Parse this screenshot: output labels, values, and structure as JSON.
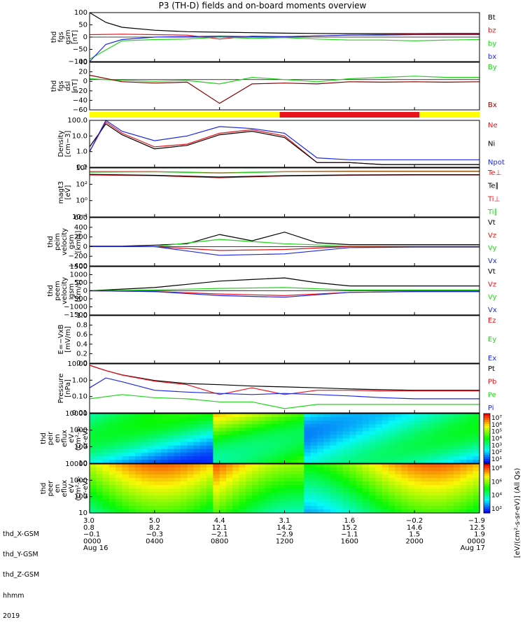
{
  "title": "P3 (TH-D) fields and on-board moments overview",
  "chart_data": [
    {
      "type": "line",
      "ylabel": [
        "thd",
        "fgs",
        "gsm",
        "[nT]"
      ],
      "ylim": [
        -100,
        100
      ],
      "ticks": [
        "100",
        "50",
        "0",
        "−50",
        "−100"
      ],
      "series": [
        {
          "name": "Bt",
          "color": "#000000",
          "x": [
            0,
            1,
            2,
            4,
            6,
            8,
            10,
            12,
            14,
            16,
            18,
            20,
            22,
            24
          ],
          "values": [
            100,
            60,
            40,
            28,
            22,
            20,
            18,
            16,
            15,
            14,
            14,
            14,
            15,
            15
          ]
        },
        {
          "name": "bz",
          "color": "#e8141b",
          "x": [
            0,
            2,
            4,
            6,
            8,
            10,
            12,
            14,
            16,
            18,
            20,
            22,
            24
          ],
          "values": [
            10,
            12,
            10,
            8,
            -8,
            4,
            2,
            5,
            8,
            10,
            12,
            12,
            12
          ]
        },
        {
          "name": "by",
          "color": "#22d51b",
          "x": [
            0,
            2,
            4,
            6,
            8,
            10,
            12,
            14,
            16,
            18,
            20,
            22,
            24
          ],
          "values": [
            -90,
            -15,
            -10,
            -8,
            0,
            -5,
            -2,
            -8,
            -12,
            -12,
            -15,
            -12,
            -10
          ]
        },
        {
          "name": "bx",
          "color": "#1d28e6",
          "x": [
            0,
            1,
            2,
            4,
            6,
            8,
            10,
            12,
            14,
            16,
            18,
            20,
            22,
            24
          ],
          "values": [
            -100,
            -30,
            -10,
            0,
            2,
            4,
            2,
            2,
            5,
            8,
            8,
            10,
            10,
            10
          ]
        }
      ]
    },
    {
      "type": "line",
      "ylabel": [
        "thd",
        "fgs",
        "dsl",
        "[nT]"
      ],
      "ylim": [
        -70,
        40
      ],
      "ticks": [
        "40",
        "20",
        "0",
        "−20",
        "−40",
        "−60"
      ],
      "series": [
        {
          "name": "By",
          "color": "#22d51b",
          "x": [
            0,
            2,
            4,
            6,
            8,
            10,
            12,
            14,
            16,
            18,
            20,
            22,
            24
          ],
          "values": [
            2,
            -2,
            -4,
            -2,
            -10,
            5,
            0,
            -5,
            2,
            5,
            8,
            5,
            5
          ]
        },
        {
          "name": "Bx",
          "color": "#8b0000",
          "x": [
            0,
            2,
            4,
            6,
            8,
            10,
            12,
            14,
            16,
            18,
            20,
            22,
            24
          ],
          "values": [
            10,
            -5,
            -8,
            -6,
            -55,
            -10,
            -8,
            -10,
            -5,
            -6,
            -5,
            -6,
            -5
          ]
        }
      ]
    },
    {
      "type": "line",
      "scale": "log",
      "ylabel": [
        "Density",
        "[cm−3]"
      ],
      "ylim": [
        0.1,
        100
      ],
      "ticks": [
        "100.0",
        "10.0",
        "1.0",
        "0.1"
      ],
      "series": [
        {
          "name": "Ne",
          "color": "#e8141b",
          "x": [
            0,
            1,
            2,
            4,
            6,
            8,
            10,
            12,
            14,
            16,
            18,
            20,
            22,
            24
          ],
          "values": [
            1,
            80,
            15,
            2,
            3,
            15,
            25,
            10,
            0.2,
            0.2,
            0.15,
            0.15,
            0.15,
            0.15
          ]
        },
        {
          "name": "Ni",
          "color": "#000000",
          "x": [
            0,
            1,
            2,
            4,
            6,
            8,
            10,
            12,
            14,
            16,
            18,
            20,
            22,
            24
          ],
          "values": [
            2,
            60,
            12,
            1.5,
            2.5,
            12,
            20,
            8,
            0.2,
            0.2,
            0.15,
            0.15,
            0.15,
            0.15
          ]
        },
        {
          "name": "Npot",
          "color": "#1d28e6",
          "x": [
            0,
            1,
            2,
            4,
            6,
            8,
            10,
            12,
            14,
            16,
            18,
            20,
            22,
            24
          ],
          "values": [
            1,
            100,
            20,
            5,
            10,
            40,
            30,
            15,
            0.4,
            0.3,
            0.3,
            0.3,
            0.3,
            0.3
          ]
        }
      ]
    },
    {
      "type": "line",
      "scale": "log",
      "ylabel": [
        "magt3",
        "[eV]"
      ],
      "ylim": [
        0.001,
        10000
      ],
      "ticks": [
        "10⁴",
        "10²",
        "10⁰",
        "10⁻²"
      ],
      "series": [
        {
          "name": "Te⊥",
          "color": "#e8141b",
          "x": [
            0,
            4,
            8,
            12,
            16,
            20,
            24
          ],
          "values": [
            1000,
            800,
            400,
            700,
            900,
            1000,
            1000
          ]
        },
        {
          "name": "Te∥",
          "color": "#000000",
          "x": [
            0,
            4,
            8,
            12,
            16,
            20,
            24
          ],
          "values": [
            1200,
            900,
            500,
            800,
            1000,
            1100,
            1100
          ]
        },
        {
          "name": "Ti⊥",
          "color": "#e8141b",
          "x": [
            0,
            4,
            8,
            12,
            16,
            20,
            24
          ],
          "values": [
            3000,
            3000,
            2000,
            3000,
            3500,
            3500,
            3500
          ]
        },
        {
          "name": "Ti∥",
          "color": "#22d51b",
          "x": [
            0,
            4,
            8,
            12,
            16,
            20,
            24
          ],
          "values": [
            2500,
            2800,
            1800,
            2800,
            3000,
            3000,
            3000
          ]
        }
      ]
    },
    {
      "type": "line",
      "ylabel": [
        "thd",
        "peim",
        "velocity",
        "gsm",
        "[km/s]"
      ],
      "ylim": [
        -400,
        600
      ],
      "ticks": [
        "600",
        "400",
        "200",
        "0",
        "−200",
        "−400"
      ],
      "series": [
        {
          "name": "Vt",
          "color": "#000000",
          "x": [
            0,
            2,
            4,
            6,
            8,
            10,
            12,
            14,
            16,
            18,
            20,
            22,
            24
          ],
          "values": [
            10,
            10,
            30,
            60,
            250,
            120,
            300,
            80,
            40,
            40,
            40,
            40,
            40
          ]
        },
        {
          "name": "Vz",
          "color": "#e8141b",
          "x": [
            0,
            4,
            8,
            12,
            16,
            20,
            24
          ],
          "values": [
            0,
            0,
            -80,
            -60,
            0,
            0,
            0
          ]
        },
        {
          "name": "Vy",
          "color": "#22d51b",
          "x": [
            0,
            4,
            8,
            12,
            16,
            20,
            24
          ],
          "values": [
            0,
            0,
            150,
            60,
            10,
            10,
            10
          ]
        },
        {
          "name": "Vx",
          "color": "#1d28e6",
          "x": [
            0,
            4,
            8,
            12,
            16,
            20,
            24
          ],
          "values": [
            0,
            0,
            -180,
            -150,
            -20,
            -10,
            -10
          ]
        }
      ]
    },
    {
      "type": "line",
      "ylabel": [
        "thd",
        "peem",
        "velocity",
        "gsm",
        "[km/s]"
      ],
      "ylim": [
        -1500,
        1500
      ],
      "ticks": [
        "1500",
        "1000",
        "500",
        "0",
        "−500",
        "−1000",
        "−1500"
      ],
      "series": [
        {
          "name": "Vt",
          "color": "#000000",
          "x": [
            0,
            4,
            6,
            8,
            10,
            12,
            14,
            16,
            18,
            20,
            22,
            24
          ],
          "values": [
            0,
            200,
            400,
            600,
            700,
            800,
            500,
            300,
            300,
            300,
            300,
            300
          ]
        },
        {
          "name": "Vz",
          "color": "#e8141b",
          "x": [
            0,
            4,
            8,
            12,
            16,
            20,
            24
          ],
          "values": [
            0,
            -50,
            -200,
            -300,
            -100,
            -50,
            -50
          ]
        },
        {
          "name": "Vy",
          "color": "#22d51b",
          "x": [
            0,
            4,
            8,
            12,
            16,
            20,
            24
          ],
          "values": [
            0,
            50,
            150,
            200,
            50,
            50,
            50
          ]
        },
        {
          "name": "Vx",
          "color": "#1d28e6",
          "x": [
            0,
            4,
            8,
            12,
            16,
            20,
            24
          ],
          "values": [
            0,
            -50,
            -300,
            -400,
            -100,
            -50,
            -50
          ]
        }
      ]
    },
    {
      "type": "line",
      "ylabel": [
        "E=−VxB",
        "[mV/m]"
      ],
      "ylim": [
        0,
        1
      ],
      "ticks": [
        "1.0",
        "0.8",
        "0.6",
        "0.4",
        "0.2",
        "0.0"
      ],
      "series": [
        {
          "name": "Ez",
          "color": "#e8141b",
          "x": [],
          "values": []
        },
        {
          "name": "Ey",
          "color": "#22d51b",
          "x": [],
          "values": []
        },
        {
          "name": "Ex",
          "color": "#1d28e6",
          "x": [],
          "values": []
        }
      ]
    },
    {
      "type": "line",
      "scale": "log",
      "ylabel": [
        "Pressure",
        "[nPa]"
      ],
      "ylim": [
        0.005,
        15
      ],
      "ticks": [
        "10.00",
        "1.00",
        "0.10",
        "0.01"
      ],
      "series": [
        {
          "name": "Pt",
          "color": "#000000",
          "x": [
            0,
            1,
            2,
            4,
            6,
            8,
            10,
            12,
            14,
            16,
            18,
            20,
            22,
            24
          ],
          "values": [
            12,
            5,
            2.5,
            1,
            0.6,
            0.5,
            0.4,
            0.35,
            0.3,
            0.25,
            0.22,
            0.2,
            0.2,
            0.2
          ]
        },
        {
          "name": "Pb",
          "color": "#e8141b",
          "x": [
            0,
            1,
            2,
            4,
            6,
            8,
            10,
            12,
            14,
            16,
            18,
            20,
            22,
            24
          ],
          "values": [
            12,
            5,
            2.4,
            0.9,
            0.5,
            0.1,
            0.3,
            0.1,
            0.2,
            0.2,
            0.18,
            0.18,
            0.18,
            0.18
          ]
        },
        {
          "name": "Pe",
          "color": "#22d51b",
          "x": [
            0,
            2,
            4,
            6,
            8,
            10,
            12,
            14,
            16,
            18,
            20,
            22,
            24
          ],
          "values": [
            0.05,
            0.1,
            0.06,
            0.05,
            0.03,
            0.03,
            0.01,
            0.02,
            0.02,
            0.02,
            0.02,
            0.02,
            0.02
          ]
        },
        {
          "name": "Pi",
          "color": "#1d28e6",
          "x": [
            0,
            1,
            2,
            4,
            6,
            8,
            10,
            12,
            14,
            16,
            18,
            20,
            22,
            24
          ],
          "values": [
            0.3,
            1.5,
            0.8,
            0.2,
            0.15,
            0.12,
            0.1,
            0.12,
            0.1,
            0.08,
            0.06,
            0.05,
            0.05,
            0.05
          ]
        }
      ]
    },
    {
      "type": "heatmap",
      "ylabel": [
        "thd",
        "peir",
        "en",
        "eflux",
        "eV",
        "(cm²-s-",
        "sr-eV)"
      ],
      "ticks": [
        "10000",
        "1000",
        "100",
        "10"
      ],
      "colorbar_ticks": [
        "10⁷",
        "10⁶",
        "10⁵",
        "10⁴",
        "10³",
        "10²",
        "10¹"
      ]
    },
    {
      "type": "heatmap",
      "ylabel": [
        "thd",
        "peer",
        "en",
        "eflux",
        "eV",
        "(cm²-s-",
        "sr-eV)"
      ],
      "ticks": [
        "10000",
        "1000",
        "100",
        "10"
      ],
      "colorbar_ticks": [
        "10⁸",
        "10⁶",
        "10⁴",
        "10²"
      ],
      "colorbar_label": "[eV/(cm²-s-sr-eV)] (All Qs)"
    }
  ],
  "mode_bar": [
    {
      "from": 0,
      "to": 11.7,
      "color": "#ffff00"
    },
    {
      "from": 11.7,
      "to": 20.3,
      "color": "#e8141b"
    },
    {
      "from": 20.3,
      "to": 24,
      "color": "#ffff00"
    }
  ],
  "ephemeris": {
    "labels": [
      "thd_X-GSM",
      "thd_Y-GSM",
      "thd_Z-GSM",
      "hhmm",
      "2019"
    ],
    "columns": [
      {
        "x": "3.0",
        "y": "0.8",
        "z": "−0.1",
        "hhmm": "0000",
        "date": "Aug 16"
      },
      {
        "x": "5.0",
        "y": "8.2",
        "z": "−0.3",
        "hhmm": "0400",
        "date": ""
      },
      {
        "x": "4.4",
        "y": "12.1",
        "z": "−2.1",
        "hhmm": "0800",
        "date": ""
      },
      {
        "x": "3.1",
        "y": "14.2",
        "z": "−2.9",
        "hhmm": "1200",
        "date": ""
      },
      {
        "x": "1.6",
        "y": "15.2",
        "z": "−1.1",
        "hhmm": "1600",
        "date": ""
      },
      {
        "x": "−0.2",
        "y": "14.6",
        "z": "1.5",
        "hhmm": "2000",
        "date": ""
      },
      {
        "x": "−1.9",
        "y": "12.5",
        "z": "1.9",
        "hhmm": "0000",
        "date": "Aug 17"
      }
    ]
  }
}
